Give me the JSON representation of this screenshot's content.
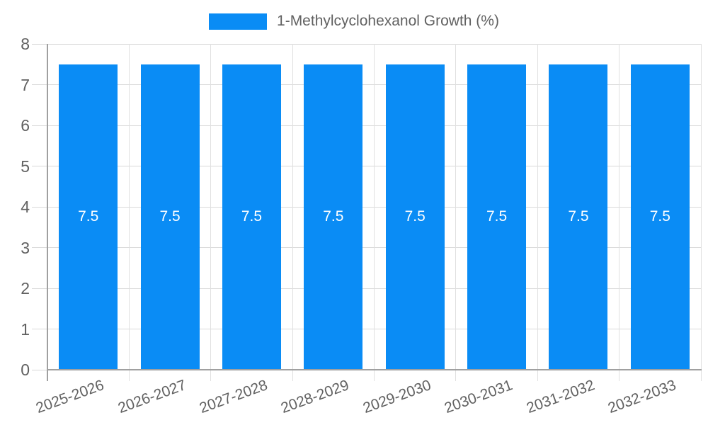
{
  "legend": {
    "label": "1-Methylcyclohexanol Growth (%)"
  },
  "colors": {
    "bar": "#0a8cf5",
    "bar_label": "#ffffff",
    "axis_line": "#a0a0a0",
    "gridline": "#d9d9d9",
    "boundary_gridline": "#e0e0e0",
    "tick_label": "#616161",
    "background": "#ffffff"
  },
  "chart_data": {
    "type": "bar",
    "title": "1-Methylcyclohexanol Growth (%)",
    "categories": [
      "2025-2026",
      "2026-2027",
      "2027-2028",
      "2028-2029",
      "2029-2030",
      "2030-2031",
      "2031-2032",
      "2032-2033"
    ],
    "values": [
      7.5,
      7.5,
      7.5,
      7.5,
      7.5,
      7.5,
      7.5,
      7.5
    ],
    "bar_labels": [
      "7.5",
      "7.5",
      "7.5",
      "7.5",
      "7.5",
      "7.5",
      "7.5",
      "7.5"
    ],
    "xlabel": "",
    "ylabel": "",
    "ylim": [
      0,
      8
    ],
    "yticks": [
      0,
      1,
      2,
      3,
      4,
      5,
      6,
      7,
      8
    ],
    "grid": true,
    "legend_position": "top",
    "x_label_rotation_deg": -20,
    "series": [
      {
        "name": "1-Methylcyclohexanol Growth (%)",
        "color": "#0a8cf5",
        "values": [
          7.5,
          7.5,
          7.5,
          7.5,
          7.5,
          7.5,
          7.5,
          7.5
        ]
      }
    ]
  }
}
